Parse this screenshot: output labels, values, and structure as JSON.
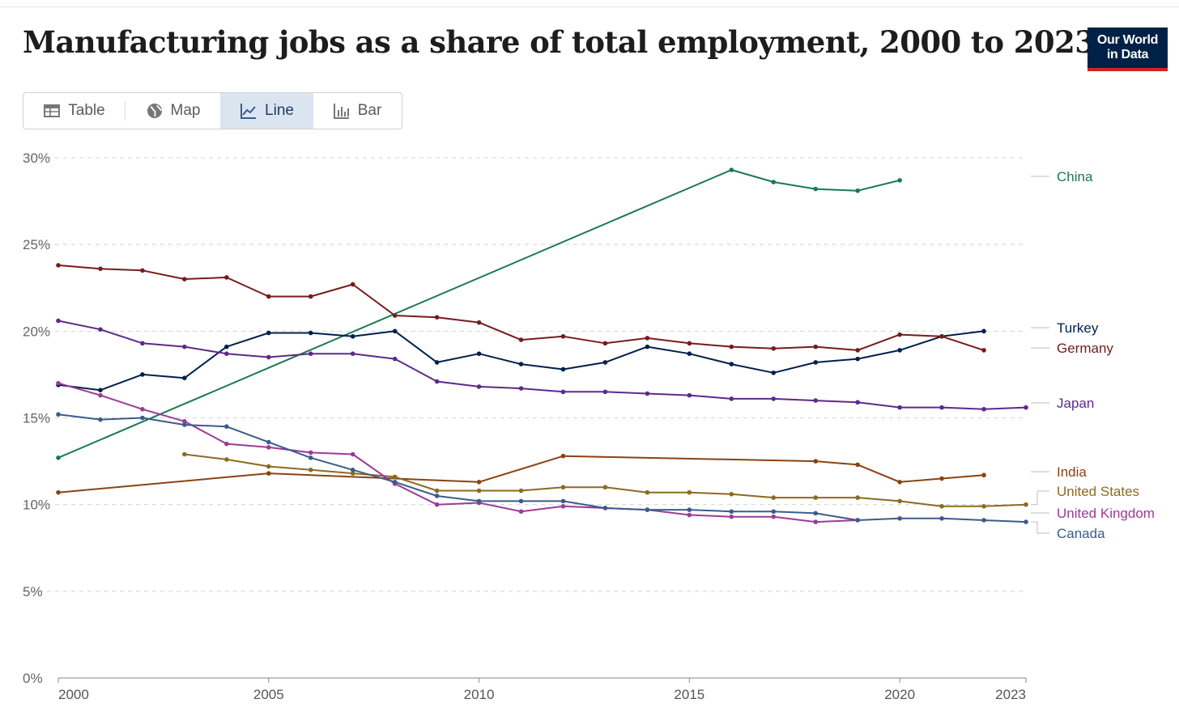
{
  "header": {
    "title": "Manufacturing jobs as a share of total employment, 2000 to 2023",
    "logo_line1": "Our World",
    "logo_line2": "in Data"
  },
  "tabs": [
    {
      "label": "Table",
      "icon": "table-icon",
      "active": false
    },
    {
      "label": "Map",
      "icon": "globe-icon",
      "active": false
    },
    {
      "label": "Line",
      "icon": "line-chart-icon",
      "active": true
    },
    {
      "label": "Bar",
      "icon": "bar-chart-icon",
      "active": false
    }
  ],
  "chart_data": {
    "type": "line",
    "title": "Manufacturing jobs as a share of total employment, 2000 to 2023",
    "xlim": [
      2000,
      2023
    ],
    "ylim": [
      0,
      30
    ],
    "xticks": [
      "2000",
      "2005",
      "2010",
      "2015",
      "2020",
      "2023"
    ],
    "yticks": [
      "0%",
      "5%",
      "10%",
      "15%",
      "20%",
      "25%",
      "30%"
    ],
    "grid": true,
    "legend": "right-inline",
    "series": [
      {
        "name": "China",
        "color": "#1a7a53",
        "points": [
          [
            2000,
            12.7
          ],
          [
            2016,
            29.3
          ],
          [
            2017,
            28.6
          ],
          [
            2018,
            28.2
          ],
          [
            2019,
            28.1
          ],
          [
            2020,
            28.7
          ]
        ]
      },
      {
        "name": "Turkey",
        "color": "#00204c",
        "points": [
          [
            2000,
            16.9
          ],
          [
            2001,
            16.6
          ],
          [
            2002,
            17.5
          ],
          [
            2003,
            17.3
          ],
          [
            2004,
            19.1
          ],
          [
            2005,
            19.9
          ],
          [
            2006,
            19.9
          ],
          [
            2007,
            19.7
          ],
          [
            2008,
            20.0
          ],
          [
            2009,
            18.2
          ],
          [
            2010,
            18.7
          ],
          [
            2011,
            18.1
          ],
          [
            2012,
            17.8
          ],
          [
            2013,
            18.2
          ],
          [
            2014,
            19.1
          ],
          [
            2015,
            18.7
          ],
          [
            2016,
            18.1
          ],
          [
            2017,
            17.6
          ],
          [
            2018,
            18.2
          ],
          [
            2019,
            18.4
          ],
          [
            2020,
            18.9
          ],
          [
            2021,
            19.7
          ],
          [
            2022,
            20.0
          ]
        ]
      },
      {
        "name": "Germany",
        "color": "#761c1c",
        "points": [
          [
            2000,
            23.8
          ],
          [
            2001,
            23.6
          ],
          [
            2002,
            23.5
          ],
          [
            2003,
            23.0
          ],
          [
            2004,
            23.1
          ],
          [
            2005,
            22.0
          ],
          [
            2006,
            22.0
          ],
          [
            2007,
            22.7
          ],
          [
            2008,
            20.9
          ],
          [
            2009,
            20.8
          ],
          [
            2010,
            20.5
          ],
          [
            2011,
            19.5
          ],
          [
            2012,
            19.7
          ],
          [
            2013,
            19.3
          ],
          [
            2014,
            19.6
          ],
          [
            2015,
            19.3
          ],
          [
            2016,
            19.1
          ],
          [
            2017,
            19.0
          ],
          [
            2018,
            19.1
          ],
          [
            2019,
            18.9
          ],
          [
            2020,
            19.8
          ],
          [
            2021,
            19.7
          ],
          [
            2022,
            18.9
          ]
        ]
      },
      {
        "name": "Japan",
        "color": "#5d2a8a",
        "points": [
          [
            2000,
            20.6
          ],
          [
            2001,
            20.1
          ],
          [
            2002,
            19.3
          ],
          [
            2003,
            19.1
          ],
          [
            2004,
            18.7
          ],
          [
            2005,
            18.5
          ],
          [
            2006,
            18.7
          ],
          [
            2007,
            18.7
          ],
          [
            2008,
            18.4
          ],
          [
            2009,
            17.1
          ],
          [
            2010,
            16.8
          ],
          [
            2011,
            16.7
          ],
          [
            2012,
            16.5
          ],
          [
            2013,
            16.5
          ],
          [
            2014,
            16.4
          ],
          [
            2015,
            16.3
          ],
          [
            2016,
            16.1
          ],
          [
            2017,
            16.1
          ],
          [
            2018,
            16.0
          ],
          [
            2019,
            15.9
          ],
          [
            2020,
            15.6
          ],
          [
            2021,
            15.6
          ],
          [
            2022,
            15.5
          ],
          [
            2023,
            15.6
          ]
        ]
      },
      {
        "name": "India",
        "color": "#8a4312",
        "points": [
          [
            2000,
            10.7
          ],
          [
            2005,
            11.8
          ],
          [
            2010,
            11.3
          ],
          [
            2012,
            12.8
          ],
          [
            2018,
            12.5
          ],
          [
            2019,
            12.3
          ],
          [
            2020,
            11.3
          ],
          [
            2021,
            11.5
          ],
          [
            2022,
            11.7
          ]
        ]
      },
      {
        "name": "United States",
        "color": "#8c6a20",
        "points": [
          [
            2003,
            12.9
          ],
          [
            2004,
            12.6
          ],
          [
            2005,
            12.2
          ],
          [
            2006,
            12.0
          ],
          [
            2007,
            11.8
          ],
          [
            2008,
            11.6
          ],
          [
            2009,
            10.8
          ],
          [
            2010,
            10.8
          ],
          [
            2011,
            10.8
          ],
          [
            2012,
            11.0
          ],
          [
            2013,
            11.0
          ],
          [
            2014,
            10.7
          ],
          [
            2015,
            10.7
          ],
          [
            2016,
            10.6
          ],
          [
            2017,
            10.4
          ],
          [
            2018,
            10.4
          ],
          [
            2019,
            10.4
          ],
          [
            2020,
            10.2
          ],
          [
            2021,
            9.9
          ],
          [
            2022,
            9.9
          ],
          [
            2023,
            10.0
          ]
        ]
      },
      {
        "name": "United Kingdom",
        "color": "#9c3b96",
        "points": [
          [
            2000,
            17.0
          ],
          [
            2001,
            16.3
          ],
          [
            2002,
            15.5
          ],
          [
            2003,
            14.8
          ],
          [
            2004,
            13.5
          ],
          [
            2005,
            13.3
          ],
          [
            2006,
            13.0
          ],
          [
            2007,
            12.9
          ],
          [
            2008,
            11.2
          ],
          [
            2009,
            10.0
          ],
          [
            2010,
            10.1
          ],
          [
            2011,
            9.6
          ],
          [
            2012,
            9.9
          ],
          [
            2013,
            9.8
          ],
          [
            2014,
            9.7
          ],
          [
            2015,
            9.4
          ],
          [
            2016,
            9.3
          ],
          [
            2017,
            9.3
          ],
          [
            2018,
            9.0
          ],
          [
            2019,
            9.1
          ]
        ]
      },
      {
        "name": "Canada",
        "color": "#3b5c8a",
        "points": [
          [
            2000,
            15.2
          ],
          [
            2001,
            14.9
          ],
          [
            2002,
            15.0
          ],
          [
            2003,
            14.6
          ],
          [
            2004,
            14.5
          ],
          [
            2005,
            13.6
          ],
          [
            2006,
            12.7
          ],
          [
            2007,
            12.0
          ],
          [
            2008,
            11.3
          ],
          [
            2009,
            10.5
          ],
          [
            2010,
            10.2
          ],
          [
            2011,
            10.2
          ],
          [
            2012,
            10.2
          ],
          [
            2013,
            9.8
          ],
          [
            2014,
            9.7
          ],
          [
            2015,
            9.7
          ],
          [
            2016,
            9.6
          ],
          [
            2017,
            9.6
          ],
          [
            2018,
            9.5
          ],
          [
            2019,
            9.1
          ],
          [
            2020,
            9.2
          ],
          [
            2021,
            9.2
          ],
          [
            2022,
            9.1
          ],
          [
            2023,
            9.0
          ]
        ]
      }
    ]
  }
}
